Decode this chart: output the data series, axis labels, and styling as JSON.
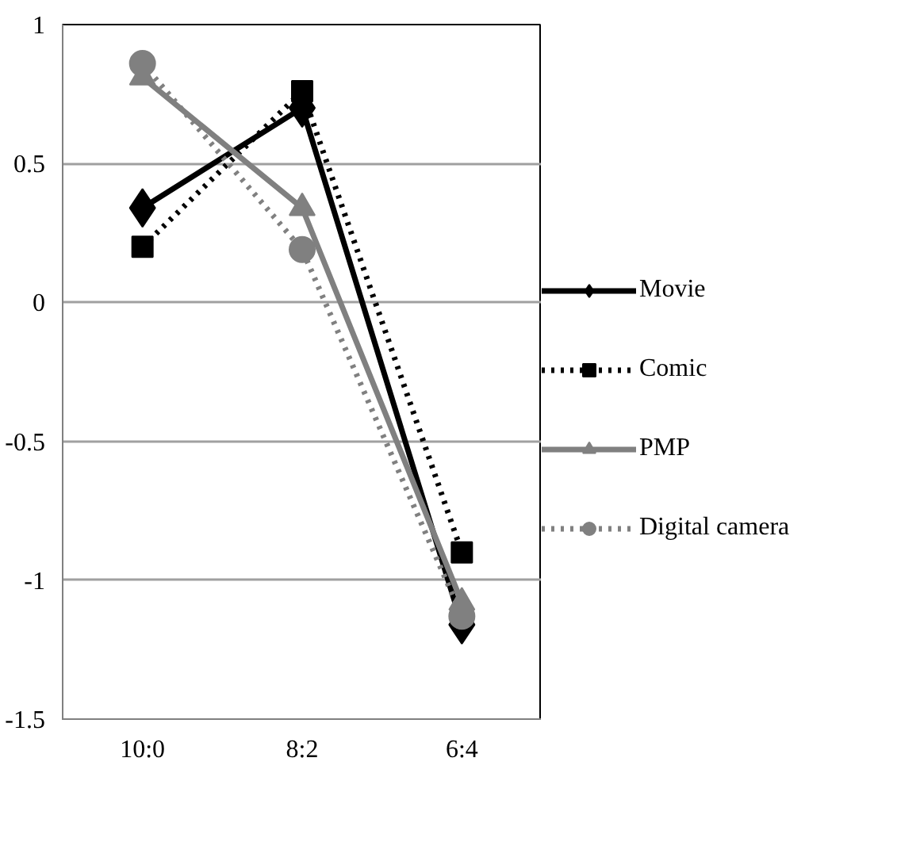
{
  "chart_data": {
    "type": "line",
    "categories": [
      "10:0",
      "8:2",
      "6:4"
    ],
    "series": [
      {
        "name": "Movie",
        "color": "#000000",
        "values": [
          0.34,
          0.7,
          -1.16
        ],
        "marker": "diamond",
        "line_style": "solid"
      },
      {
        "name": "Comic",
        "color": "#000000",
        "values": [
          0.2,
          0.76,
          -0.9
        ],
        "marker": "square",
        "line_style": "dotted"
      },
      {
        "name": "PMP",
        "color": "#808080",
        "values": [
          0.81,
          0.34,
          -1.08
        ],
        "marker": "triangle",
        "line_style": "solid"
      },
      {
        "name": "Digital camera",
        "color": "#808080",
        "values": [
          0.86,
          0.19,
          -1.13
        ],
        "marker": "circle",
        "line_style": "dotted"
      }
    ],
    "ylim": [
      -1.5,
      1
    ],
    "yticks": [
      -1.5,
      -1,
      -0.5,
      0,
      0.5,
      1
    ],
    "grid": "y",
    "legend": "right"
  }
}
